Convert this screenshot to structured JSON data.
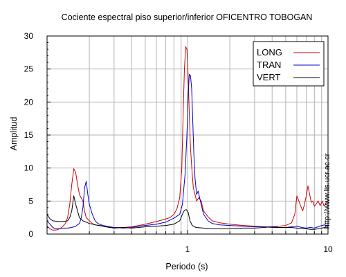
{
  "chart_data": {
    "type": "line",
    "title": "Cociente espectral piso superior/inferior OFICENTRO TOBOGAN",
    "xlabel": "Periodo (s)",
    "ylabel": "Amplitud",
    "xscale": "log",
    "xlim": [
      0.1,
      10
    ],
    "ylim": [
      0,
      30
    ],
    "yticks": [
      "0",
      "5",
      "10",
      "15",
      "20",
      "25",
      "30"
    ],
    "xticks": [
      {
        "value": 1,
        "label": "1"
      },
      {
        "value": 10,
        "label": "10"
      }
    ],
    "grid": true,
    "legend_position": "top-right",
    "side_text": "http://www.lis.ucr.ac.cr",
    "series": [
      {
        "name": "LONG",
        "color": "#cc0000",
        "points": [
          [
            0.1,
            1.2
          ],
          [
            0.105,
            0.8
          ],
          [
            0.11,
            0.6
          ],
          [
            0.115,
            0.6
          ],
          [
            0.12,
            0.7
          ],
          [
            0.125,
            0.9
          ],
          [
            0.13,
            1.2
          ],
          [
            0.135,
            1.6
          ],
          [
            0.14,
            2.5
          ],
          [
            0.145,
            4.5
          ],
          [
            0.15,
            7.5
          ],
          [
            0.155,
            9.9
          ],
          [
            0.16,
            9.3
          ],
          [
            0.165,
            7.5
          ],
          [
            0.17,
            6.0
          ],
          [
            0.175,
            5.5
          ],
          [
            0.18,
            5.0
          ],
          [
            0.185,
            3.5
          ],
          [
            0.19,
            2.5
          ],
          [
            0.2,
            2.0
          ],
          [
            0.21,
            1.6
          ],
          [
            0.22,
            1.4
          ],
          [
            0.24,
            1.3
          ],
          [
            0.26,
            1.1
          ],
          [
            0.28,
            1.0
          ],
          [
            0.3,
            1.0
          ],
          [
            0.35,
            1.0
          ],
          [
            0.4,
            1.1
          ],
          [
            0.45,
            1.3
          ],
          [
            0.5,
            1.5
          ],
          [
            0.55,
            1.7
          ],
          [
            0.6,
            1.9
          ],
          [
            0.65,
            2.1
          ],
          [
            0.7,
            2.3
          ],
          [
            0.75,
            2.5
          ],
          [
            0.8,
            3.0
          ],
          [
            0.84,
            3.8
          ],
          [
            0.88,
            5.5
          ],
          [
            0.91,
            10
          ],
          [
            0.93,
            18
          ],
          [
            0.95,
            25
          ],
          [
            0.97,
            28.4
          ],
          [
            0.99,
            28
          ],
          [
            1.01,
            24
          ],
          [
            1.03,
            18
          ],
          [
            1.05,
            13
          ],
          [
            1.08,
            9
          ],
          [
            1.1,
            7
          ],
          [
            1.13,
            6
          ],
          [
            1.16,
            5.0
          ],
          [
            1.2,
            5.5
          ],
          [
            1.25,
            5.0
          ],
          [
            1.3,
            3.5
          ],
          [
            1.4,
            2.6
          ],
          [
            1.5,
            2.0
          ],
          [
            1.7,
            1.7
          ],
          [
            2.0,
            1.5
          ],
          [
            2.5,
            1.3
          ],
          [
            3.0,
            1.2
          ],
          [
            3.5,
            1.1
          ],
          [
            4.0,
            1.1
          ],
          [
            4.5,
            1.2
          ],
          [
            5.0,
            1.3
          ],
          [
            5.5,
            1.7
          ],
          [
            5.8,
            3.0
          ],
          [
            6.0,
            5.8
          ],
          [
            6.2,
            5.0
          ],
          [
            6.4,
            4.2
          ],
          [
            6.6,
            3.5
          ],
          [
            6.8,
            4.5
          ],
          [
            7.0,
            5.8
          ],
          [
            7.2,
            7.3
          ],
          [
            7.4,
            6.0
          ],
          [
            7.6,
            4.8
          ],
          [
            7.8,
            5.0
          ],
          [
            8.0,
            4.2
          ],
          [
            8.2,
            4.5
          ],
          [
            8.5,
            5.0
          ],
          [
            8.8,
            4.3
          ],
          [
            9.1,
            5.0
          ],
          [
            9.4,
            4.2
          ],
          [
            9.7,
            4.8
          ],
          [
            10.0,
            4.9
          ]
        ]
      },
      {
        "name": "TRAN",
        "color": "#0000cc",
        "points": [
          [
            0.1,
            2.0
          ],
          [
            0.105,
            1.5
          ],
          [
            0.11,
            1.0
          ],
          [
            0.115,
            0.8
          ],
          [
            0.12,
            0.8
          ],
          [
            0.13,
            0.9
          ],
          [
            0.14,
            0.9
          ],
          [
            0.15,
            1.0
          ],
          [
            0.16,
            1.2
          ],
          [
            0.17,
            1.6
          ],
          [
            0.175,
            2.4
          ],
          [
            0.18,
            4.0
          ],
          [
            0.185,
            7.0
          ],
          [
            0.19,
            8.0
          ],
          [
            0.195,
            6.0
          ],
          [
            0.2,
            4.5
          ],
          [
            0.21,
            3.0
          ],
          [
            0.22,
            2.0
          ],
          [
            0.23,
            1.6
          ],
          [
            0.25,
            1.3
          ],
          [
            0.28,
            1.1
          ],
          [
            0.3,
            1.0
          ],
          [
            0.35,
            0.9
          ],
          [
            0.4,
            1.0
          ],
          [
            0.45,
            1.2
          ],
          [
            0.5,
            1.3
          ],
          [
            0.6,
            1.5
          ],
          [
            0.7,
            1.8
          ],
          [
            0.8,
            2.4
          ],
          [
            0.88,
            3.0
          ],
          [
            0.92,
            4.5
          ],
          [
            0.96,
            9
          ],
          [
            0.99,
            15
          ],
          [
            1.01,
            21
          ],
          [
            1.03,
            24.2
          ],
          [
            1.05,
            24
          ],
          [
            1.07,
            22
          ],
          [
            1.09,
            17
          ],
          [
            1.11,
            12
          ],
          [
            1.13,
            8.5
          ],
          [
            1.16,
            6.0
          ],
          [
            1.19,
            6.5
          ],
          [
            1.22,
            5.5
          ],
          [
            1.25,
            4.5
          ],
          [
            1.3,
            3.0
          ],
          [
            1.4,
            2.0
          ],
          [
            1.5,
            1.6
          ],
          [
            1.7,
            1.4
          ],
          [
            2.0,
            1.3
          ],
          [
            2.5,
            1.2
          ],
          [
            3.0,
            1.1
          ],
          [
            3.5,
            1.1
          ],
          [
            4.0,
            1.0
          ],
          [
            4.5,
            1.0
          ],
          [
            5.0,
            1.0
          ],
          [
            5.5,
            1.1
          ],
          [
            6.0,
            1.2
          ],
          [
            6.5,
            1.0
          ],
          [
            7.0,
            0.9
          ],
          [
            7.5,
            1.0
          ],
          [
            8.0,
            0.9
          ],
          [
            8.5,
            1.1
          ],
          [
            9.0,
            1.3
          ],
          [
            9.5,
            1.4
          ],
          [
            10.0,
            1.0
          ]
        ]
      },
      {
        "name": "VERT",
        "color": "#000000",
        "points": [
          [
            0.1,
            3.0
          ],
          [
            0.105,
            2.3
          ],
          [
            0.11,
            2.0
          ],
          [
            0.12,
            1.9
          ],
          [
            0.13,
            1.9
          ],
          [
            0.14,
            2.0
          ],
          [
            0.145,
            2.5
          ],
          [
            0.15,
            3.5
          ],
          [
            0.155,
            5.8
          ],
          [
            0.16,
            4.5
          ],
          [
            0.17,
            2.5
          ],
          [
            0.18,
            2.0
          ],
          [
            0.19,
            1.8
          ],
          [
            0.2,
            1.6
          ],
          [
            0.22,
            1.4
          ],
          [
            0.25,
            1.2
          ],
          [
            0.28,
            1.0
          ],
          [
            0.3,
            0.9
          ],
          [
            0.35,
            1.0
          ],
          [
            0.4,
            0.9
          ],
          [
            0.45,
            1.0
          ],
          [
            0.5,
            1.1
          ],
          [
            0.6,
            1.2
          ],
          [
            0.7,
            1.3
          ],
          [
            0.8,
            1.5
          ],
          [
            0.88,
            2.0
          ],
          [
            0.92,
            3.0
          ],
          [
            0.95,
            3.6
          ],
          [
            0.98,
            3.7
          ],
          [
            1.01,
            3.3
          ],
          [
            1.04,
            2.0
          ],
          [
            1.08,
            1.3
          ],
          [
            1.15,
            1.0
          ],
          [
            1.3,
            0.9
          ],
          [
            1.5,
            0.8
          ],
          [
            2.0,
            0.8
          ],
          [
            2.5,
            0.9
          ],
          [
            3.0,
            0.9
          ],
          [
            3.5,
            1.0
          ],
          [
            4.0,
            1.1
          ],
          [
            4.5,
            1.0
          ],
          [
            5.0,
            1.0
          ],
          [
            5.5,
            1.0
          ],
          [
            6.0,
            0.9
          ],
          [
            6.5,
            0.8
          ],
          [
            7.0,
            0.8
          ],
          [
            7.5,
            0.7
          ],
          [
            8.0,
            0.7
          ],
          [
            8.5,
            0.8
          ],
          [
            9.0,
            0.9
          ],
          [
            9.5,
            1.0
          ],
          [
            10.0,
            0.9
          ]
        ]
      }
    ]
  }
}
